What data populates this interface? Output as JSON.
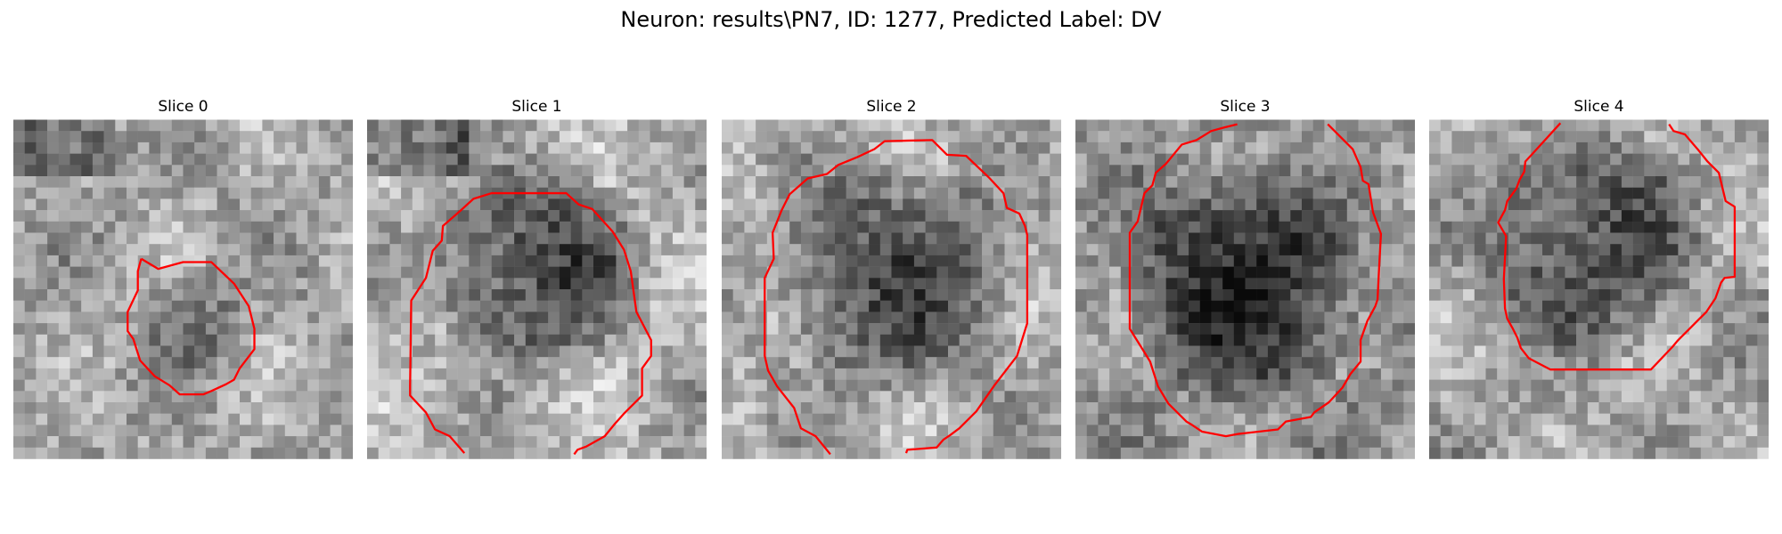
{
  "figure": {
    "suptitle": "Neuron: results\\PN7, ID: 1277, Predicted Label: DV",
    "contour_color": "#ff0000",
    "panels": [
      {
        "title": "Slice 0",
        "blob": "small-dim"
      },
      {
        "title": "Slice 1",
        "blob": "large-dark"
      },
      {
        "title": "Slice 2",
        "blob": "large-dark"
      },
      {
        "title": "Slice 3",
        "blob": "large-dark"
      },
      {
        "title": "Slice 4",
        "blob": "large-dark"
      }
    ]
  }
}
